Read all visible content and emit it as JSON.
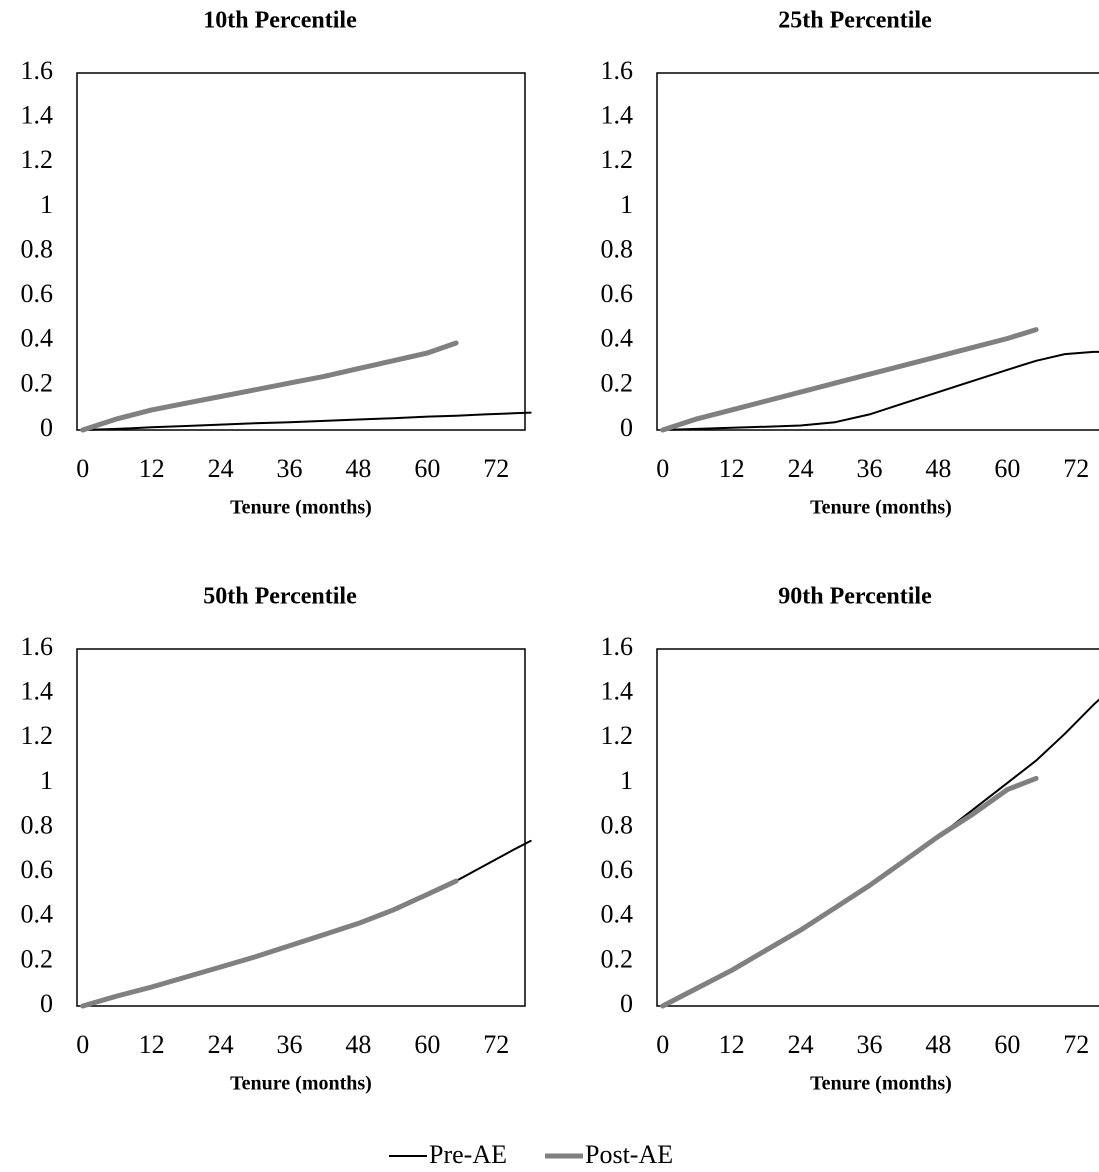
{
  "chart_data": [
    {
      "type": "line",
      "title": "10th Percentile",
      "x_label": "Tenure (months)",
      "x": [
        0,
        6,
        12,
        18,
        24,
        30,
        36,
        42,
        48,
        54,
        60,
        65,
        70,
        75,
        78
      ],
      "series": [
        {
          "color": "#000000",
          "values": [
            0,
            0.005,
            0.012,
            0.018,
            0.024,
            0.03,
            0.035,
            0.041,
            0.047,
            0.053,
            0.06,
            0.064,
            0.07,
            0.075,
            0.078
          ]
        },
        {
          "color": "#808080",
          "values": [
            0,
            0.05,
            0.09,
            0.12,
            0.15,
            0.18,
            0.21,
            0.24,
            0.275,
            0.31,
            0.345,
            0.39,
            null,
            null,
            null
          ]
        }
      ],
      "xlim": [
        -1,
        77
      ],
      "xticks": [
        0,
        12,
        24,
        36,
        48,
        60,
        72
      ],
      "ylim": [
        0,
        1.6
      ],
      "yticks": [
        0,
        0.2,
        0.4,
        0.6,
        0.8,
        1,
        1.2,
        1.4,
        1.6
      ]
    },
    {
      "type": "line",
      "title": "25th Percentile",
      "x_label": "Tenure (months)",
      "x": [
        0,
        6,
        12,
        18,
        24,
        30,
        36,
        42,
        48,
        54,
        60,
        65,
        70,
        75,
        78
      ],
      "series": [
        {
          "color": "#000000",
          "values": [
            0,
            0.005,
            0.01,
            0.015,
            0.02,
            0.035,
            0.07,
            0.12,
            0.17,
            0.22,
            0.27,
            0.31,
            0.34,
            0.35,
            0.35
          ]
        },
        {
          "color": "#808080",
          "values": [
            0,
            0.05,
            0.09,
            0.13,
            0.17,
            0.21,
            0.25,
            0.29,
            0.33,
            0.37,
            0.41,
            0.45,
            null,
            null,
            null
          ]
        }
      ],
      "xlim": [
        -1,
        77
      ],
      "xticks": [
        0,
        12,
        24,
        36,
        48,
        60,
        72
      ],
      "ylim": [
        0,
        1.6
      ],
      "yticks": [
        0,
        0.2,
        0.4,
        0.6,
        0.8,
        1,
        1.2,
        1.4,
        1.6
      ]
    },
    {
      "type": "line",
      "title": "50th Percentile",
      "x_label": "Tenure (months)",
      "x": [
        0,
        6,
        12,
        18,
        24,
        30,
        36,
        42,
        48,
        54,
        60,
        65,
        70,
        75,
        78
      ],
      "series": [
        {
          "color": "#000000",
          "values": [
            0,
            0.04,
            0.08,
            0.125,
            0.17,
            0.215,
            0.27,
            0.32,
            0.37,
            0.43,
            0.5,
            0.56,
            0.63,
            0.7,
            0.74
          ]
        },
        {
          "color": "#808080",
          "values": [
            0,
            0.045,
            0.085,
            0.13,
            0.175,
            0.22,
            0.27,
            0.32,
            0.37,
            0.43,
            0.5,
            0.56,
            null,
            null,
            null
          ]
        }
      ],
      "xlim": [
        -1,
        77
      ],
      "xticks": [
        0,
        12,
        24,
        36,
        48,
        60,
        72
      ],
      "ylim": [
        0,
        1.6
      ],
      "yticks": [
        0,
        0.2,
        0.4,
        0.6,
        0.8,
        1,
        1.2,
        1.4,
        1.6
      ]
    },
    {
      "type": "line",
      "title": "90th Percentile",
      "x_label": "Tenure (months)",
      "x": [
        0,
        6,
        12,
        18,
        24,
        30,
        36,
        42,
        48,
        54,
        60,
        65,
        70,
        75,
        78
      ],
      "series": [
        {
          "color": "#000000",
          "values": [
            0,
            0.08,
            0.16,
            0.25,
            0.34,
            0.44,
            0.54,
            0.65,
            0.76,
            0.88,
            1.0,
            1.1,
            1.22,
            1.35,
            1.42
          ]
        },
        {
          "color": "#808080",
          "values": [
            0,
            0.08,
            0.16,
            0.25,
            0.34,
            0.44,
            0.54,
            0.65,
            0.76,
            0.86,
            0.97,
            1.02,
            null,
            null,
            null
          ]
        }
      ],
      "xlim": [
        -1,
        77
      ],
      "xticks": [
        0,
        12,
        24,
        36,
        48,
        60,
        72
      ],
      "ylim": [
        0,
        1.6
      ],
      "yticks": [
        0,
        0.2,
        0.4,
        0.6,
        0.8,
        1,
        1.2,
        1.4,
        1.6
      ]
    }
  ],
  "legend": [
    {
      "name": "Pre-AE",
      "color": "#000000"
    },
    {
      "name": "Post-AE",
      "color": "#808080"
    }
  ]
}
